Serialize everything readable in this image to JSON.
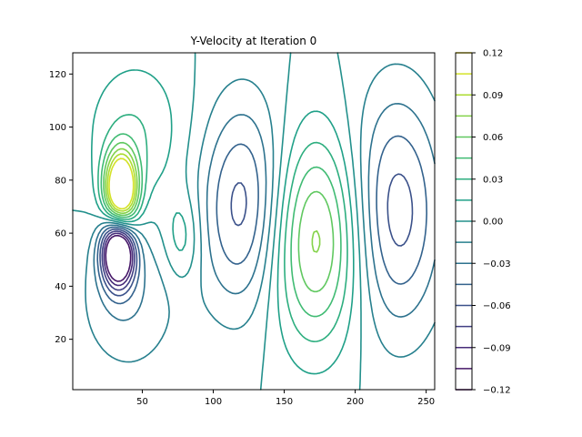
{
  "chart_data": {
    "type": "contour",
    "title": "Y-Velocity at Iteration 0",
    "xlabel": "",
    "ylabel": "",
    "xlim": [
      1,
      256
    ],
    "ylim": [
      1,
      128
    ],
    "x_ticks": [
      50,
      100,
      150,
      200,
      250
    ],
    "y_ticks": [
      20,
      40,
      60,
      80,
      100,
      120
    ],
    "colorbar": {
      "range": [
        -0.12,
        0.12
      ],
      "levels": [
        -0.12,
        -0.105,
        -0.09,
        -0.075,
        -0.06,
        -0.045,
        -0.03,
        -0.015,
        0.0,
        0.015,
        0.03,
        0.045,
        0.06,
        0.075,
        0.09,
        0.105,
        0.12
      ],
      "tick_values": [
        -0.12,
        -0.09,
        -0.06,
        -0.03,
        0.0,
        0.03,
        0.06,
        0.09,
        0.12
      ],
      "tick_labels": [
        "−0.12",
        "−0.09",
        "−0.06",
        "−0.03",
        "0.00",
        "0.03",
        "0.06",
        "0.09",
        "0.12"
      ],
      "colormap": "viridis"
    },
    "features": [
      {
        "name": "strong positive peak",
        "x": 35,
        "y": 76,
        "value": 0.12
      },
      {
        "name": "strong negative peak",
        "x": 33,
        "y": 53,
        "value": -0.12
      },
      {
        "name": "positive lobe",
        "x": 172,
        "y": 58,
        "value": 0.06
      },
      {
        "name": "small positive lobe",
        "x": 78,
        "y": 58,
        "value": 0.015
      },
      {
        "name": "negative lobe",
        "x": 122,
        "y": 70,
        "value": -0.045
      },
      {
        "name": "negative lobe",
        "x": 228,
        "y": 68,
        "value": -0.045
      }
    ]
  }
}
